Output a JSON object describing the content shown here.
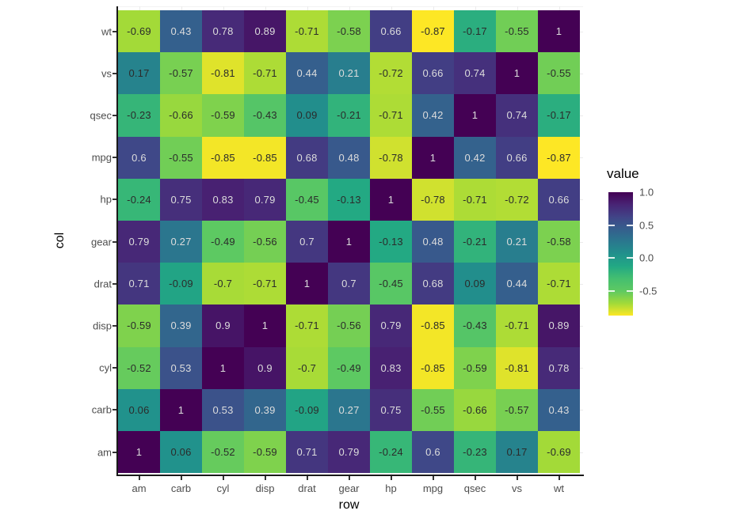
{
  "chart_data": {
    "type": "heatmap",
    "title": "",
    "xlabel": "row",
    "ylabel": "col",
    "x_categories": [
      "am",
      "carb",
      "cyl",
      "disp",
      "drat",
      "gear",
      "hp",
      "mpg",
      "qsec",
      "vs",
      "wt"
    ],
    "y_categories_top_to_bottom": [
      "wt",
      "vs",
      "qsec",
      "mpg",
      "hp",
      "gear",
      "drat",
      "disp",
      "cyl",
      "carb",
      "am"
    ],
    "matrix_rows_top_to_bottom": [
      [
        -0.69,
        0.43,
        0.78,
        0.89,
        -0.71,
        -0.58,
        0.66,
        -0.87,
        -0.17,
        -0.55,
        1
      ],
      [
        0.17,
        -0.57,
        -0.81,
        -0.71,
        0.44,
        0.21,
        -0.72,
        0.66,
        0.74,
        1,
        -0.55
      ],
      [
        -0.23,
        -0.66,
        -0.59,
        -0.43,
        0.09,
        -0.21,
        -0.71,
        0.42,
        1,
        0.74,
        -0.17
      ],
      [
        0.6,
        -0.55,
        -0.85,
        -0.85,
        0.68,
        0.48,
        -0.78,
        1,
        0.42,
        0.66,
        -0.87
      ],
      [
        -0.24,
        0.75,
        0.83,
        0.79,
        -0.45,
        -0.13,
        1,
        -0.78,
        -0.71,
        -0.72,
        0.66
      ],
      [
        0.79,
        0.27,
        -0.49,
        -0.56,
        0.7,
        1,
        -0.13,
        0.48,
        -0.21,
        0.21,
        -0.58
      ],
      [
        0.71,
        -0.09,
        -0.7,
        -0.71,
        1,
        0.7,
        -0.45,
        0.68,
        0.09,
        0.44,
        -0.71
      ],
      [
        -0.59,
        0.39,
        0.9,
        1,
        -0.71,
        -0.56,
        0.79,
        -0.85,
        -0.43,
        -0.71,
        0.89
      ],
      [
        -0.52,
        0.53,
        1,
        0.9,
        -0.7,
        -0.49,
        0.83,
        -0.85,
        -0.59,
        -0.81,
        0.78
      ],
      [
        0.06,
        1,
        0.53,
        0.39,
        -0.09,
        0.27,
        0.75,
        -0.55,
        -0.66,
        -0.57,
        0.43
      ],
      [
        1,
        0.06,
        -0.52,
        -0.59,
        0.71,
        0.79,
        -0.24,
        0.6,
        -0.23,
        0.17,
        -0.69
      ]
    ],
    "legend": {
      "title": "value",
      "tick_labels": [
        "1.0",
        "0.5",
        "0.0",
        "-0.5"
      ],
      "tick_values": [
        1.0,
        0.5,
        0.0,
        -0.5
      ],
      "value_max": 1.0,
      "value_min": -0.87,
      "position": "right"
    },
    "colorscale": {
      "name": "viridis-reversed",
      "stops": [
        "#440154",
        "#482475",
        "#414487",
        "#355F8D",
        "#2A788E",
        "#21918C",
        "#22A884",
        "#44BF70",
        "#5EC962",
        "#A0DA39",
        "#FDE725"
      ]
    },
    "text_colors": {
      "dark": "#2B2B2B",
      "light": "#DCDCDC",
      "light_text_min_value": 0.2
    },
    "grid": "faint-stubs-at-panel-edges",
    "background": "#FFFFFF"
  }
}
